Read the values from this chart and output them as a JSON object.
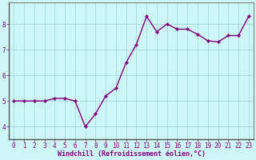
{
  "x": [
    0,
    1,
    2,
    3,
    4,
    5,
    6,
    7,
    8,
    9,
    10,
    11,
    12,
    13,
    14,
    15,
    16,
    17,
    18,
    19,
    20,
    21,
    22,
    23
  ],
  "y": [
    5.0,
    5.0,
    5.0,
    5.0,
    5.1,
    5.1,
    5.0,
    4.0,
    4.5,
    5.2,
    5.5,
    6.5,
    7.2,
    8.3,
    7.7,
    8.0,
    7.8,
    7.8,
    7.6,
    7.35,
    7.3,
    7.55,
    7.55,
    8.3
  ],
  "line_color": "#800080",
  "marker": "D",
  "marker_size": 2.0,
  "bg_color": "#cef5f5",
  "grid_color": "#aadddd",
  "xlabel": "Windchill (Refroidissement éolien,°C)",
  "xlabel_fontsize": 6.0,
  "label_color": "#800080",
  "xlim": [
    -0.5,
    23.5
  ],
  "ylim": [
    3.5,
    8.85
  ],
  "yticks": [
    4,
    5,
    6,
    7,
    8
  ],
  "xticks": [
    0,
    1,
    2,
    3,
    4,
    5,
    6,
    7,
    8,
    9,
    10,
    11,
    12,
    13,
    14,
    15,
    16,
    17,
    18,
    19,
    20,
    21,
    22,
    23
  ],
  "tick_fontsize": 5.5,
  "linewidth": 1.0,
  "spine_color": "#808080"
}
